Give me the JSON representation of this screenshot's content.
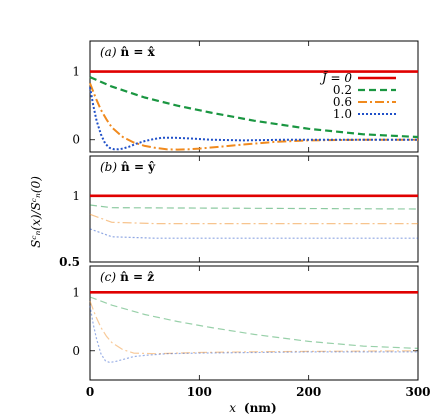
{
  "chart_data": {
    "type": "line",
    "xlabel_var": "x",
    "xlabel_unit": "(nm)",
    "ylabel": "Sᶜₙ(x)/Sᶜₙ(0)",
    "xlim": [
      0,
      300
    ],
    "xticks": [
      "0",
      "100",
      "200",
      "300"
    ],
    "legend": {
      "title_var": "J̃ = 0",
      "entries": [
        "0.2",
        "0.6",
        "1.0"
      ]
    },
    "colors": {
      "J0": "#e00000",
      "J02": "#1a9641",
      "J06": "#f08a1e",
      "J10": "#2050c8"
    },
    "panels": [
      {
        "id": "a",
        "label_id": "(a)",
        "label_eq": "n̂ = x̂",
        "ylim": [
          -0.18,
          1.45
        ],
        "yticks": [
          {
            "v": 1,
            "t": "1"
          },
          {
            "v": 0,
            "t": "0"
          }
        ],
        "series": [
          {
            "key": "J0",
            "x": [
              0,
              300
            ],
            "y": [
              1,
              1
            ]
          },
          {
            "key": "J02",
            "x": [
              0,
              20,
              50,
              80,
              110,
              150,
              200,
              250,
              300
            ],
            "y": [
              0.92,
              0.78,
              0.62,
              0.5,
              0.4,
              0.28,
              0.16,
              0.08,
              0.04
            ]
          },
          {
            "key": "J06",
            "x": [
              0,
              5,
              10,
              15,
              20,
              30,
              40,
              50,
              60,
              70,
              80,
              90,
              100,
              120,
              140,
              170,
              200,
              250,
              300
            ],
            "y": [
              0.83,
              0.62,
              0.44,
              0.3,
              0.18,
              0.04,
              -0.04,
              -0.09,
              -0.12,
              -0.14,
              -0.145,
              -0.14,
              -0.13,
              -0.1,
              -0.07,
              -0.03,
              -0.01,
              0,
              0
            ]
          },
          {
            "key": "J10",
            "x": [
              0,
              3,
              6,
              10,
              14,
              18,
              22,
              26,
              30,
              36,
              42,
              50,
              58,
              66,
              76,
              90,
              110,
              140,
              180,
              240,
              300
            ],
            "y": [
              0.77,
              0.5,
              0.28,
              0.08,
              -0.06,
              -0.12,
              -0.14,
              -0.14,
              -0.13,
              -0.1,
              -0.06,
              -0.02,
              0.01,
              0.03,
              0.03,
              0.02,
              0.0,
              -0.01,
              0,
              0,
              0
            ]
          }
        ]
      },
      {
        "id": "b",
        "label_id": "(b)",
        "label_eq": "n̂ = ŷ",
        "ylim": [
          0.5,
          1.3
        ],
        "yticks": [
          {
            "v": 1,
            "t": "1"
          },
          {
            "v": 0.5,
            "t": "0.5"
          }
        ],
        "series": [
          {
            "key": "J0",
            "x": [
              0,
              300
            ],
            "y": [
              1,
              1
            ]
          },
          {
            "key": "J02",
            "x": [
              0,
              20,
              300
            ],
            "y": [
              0.93,
              0.91,
              0.9
            ]
          },
          {
            "key": "J06",
            "x": [
              0,
              20,
              60,
              300
            ],
            "y": [
              0.86,
              0.8,
              0.79,
              0.79
            ]
          },
          {
            "key": "J10",
            "x": [
              0,
              20,
              60,
              300
            ],
            "y": [
              0.75,
              0.69,
              0.68,
              0.68
            ]
          }
        ]
      },
      {
        "id": "c",
        "label_id": "(c)",
        "label_eq": "n̂ = ẑ",
        "ylim": [
          -0.5,
          1.45
        ],
        "yticks": [
          {
            "v": 1,
            "t": "1"
          },
          {
            "v": 0,
            "t": "0"
          }
        ],
        "series": [
          {
            "key": "J0",
            "x": [
              0,
              300
            ],
            "y": [
              1,
              1
            ]
          },
          {
            "key": "J02",
            "x": [
              0,
              20,
              50,
              80,
              110,
              150,
              200,
              250,
              300
            ],
            "y": [
              0.92,
              0.78,
              0.62,
              0.5,
              0.4,
              0.28,
              0.16,
              0.08,
              0.04
            ]
          },
          {
            "key": "J06",
            "x": [
              0,
              5,
              10,
              15,
              20,
              30,
              40,
              60,
              80,
              100,
              140,
              200,
              300
            ],
            "y": [
              0.85,
              0.6,
              0.4,
              0.25,
              0.14,
              0.02,
              -0.04,
              -0.05,
              -0.04,
              -0.03,
              -0.02,
              -0.01,
              0
            ]
          },
          {
            "key": "J10",
            "x": [
              0,
              3,
              6,
              10,
              14,
              18,
              24,
              30,
              40,
              50,
              70,
              100,
              150,
              200,
              300
            ],
            "y": [
              0.77,
              0.45,
              0.2,
              -0.05,
              -0.17,
              -0.2,
              -0.18,
              -0.15,
              -0.1,
              -0.08,
              -0.05,
              -0.04,
              -0.03,
              -0.02,
              -0.02
            ]
          }
        ]
      }
    ]
  }
}
